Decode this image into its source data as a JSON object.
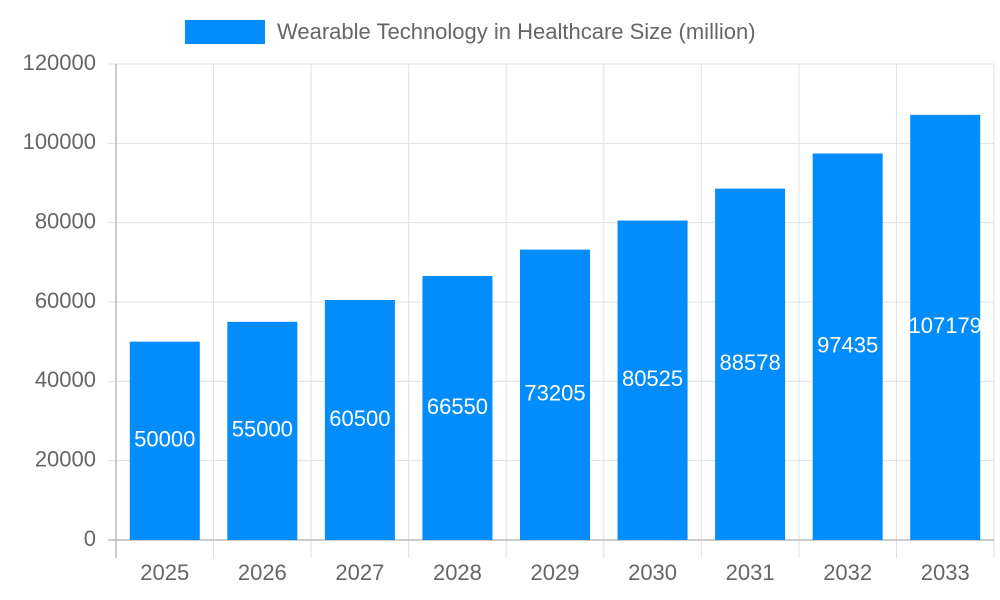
{
  "chart_data": {
    "type": "bar",
    "categories": [
      "2025",
      "2026",
      "2027",
      "2028",
      "2029",
      "2030",
      "2031",
      "2032",
      "2033"
    ],
    "series": [
      {
        "name": "Wearable Technology in Healthcare Size (million)",
        "color": "#038cfc",
        "values": [
          50000,
          55000,
          60500,
          66550,
          73205,
          80525,
          88578,
          97435,
          107179
        ]
      }
    ],
    "ylim": [
      0,
      120000
    ],
    "yticks": [
      0,
      20000,
      40000,
      60000,
      80000,
      100000,
      120000
    ],
    "grid": true,
    "legend": "top"
  }
}
